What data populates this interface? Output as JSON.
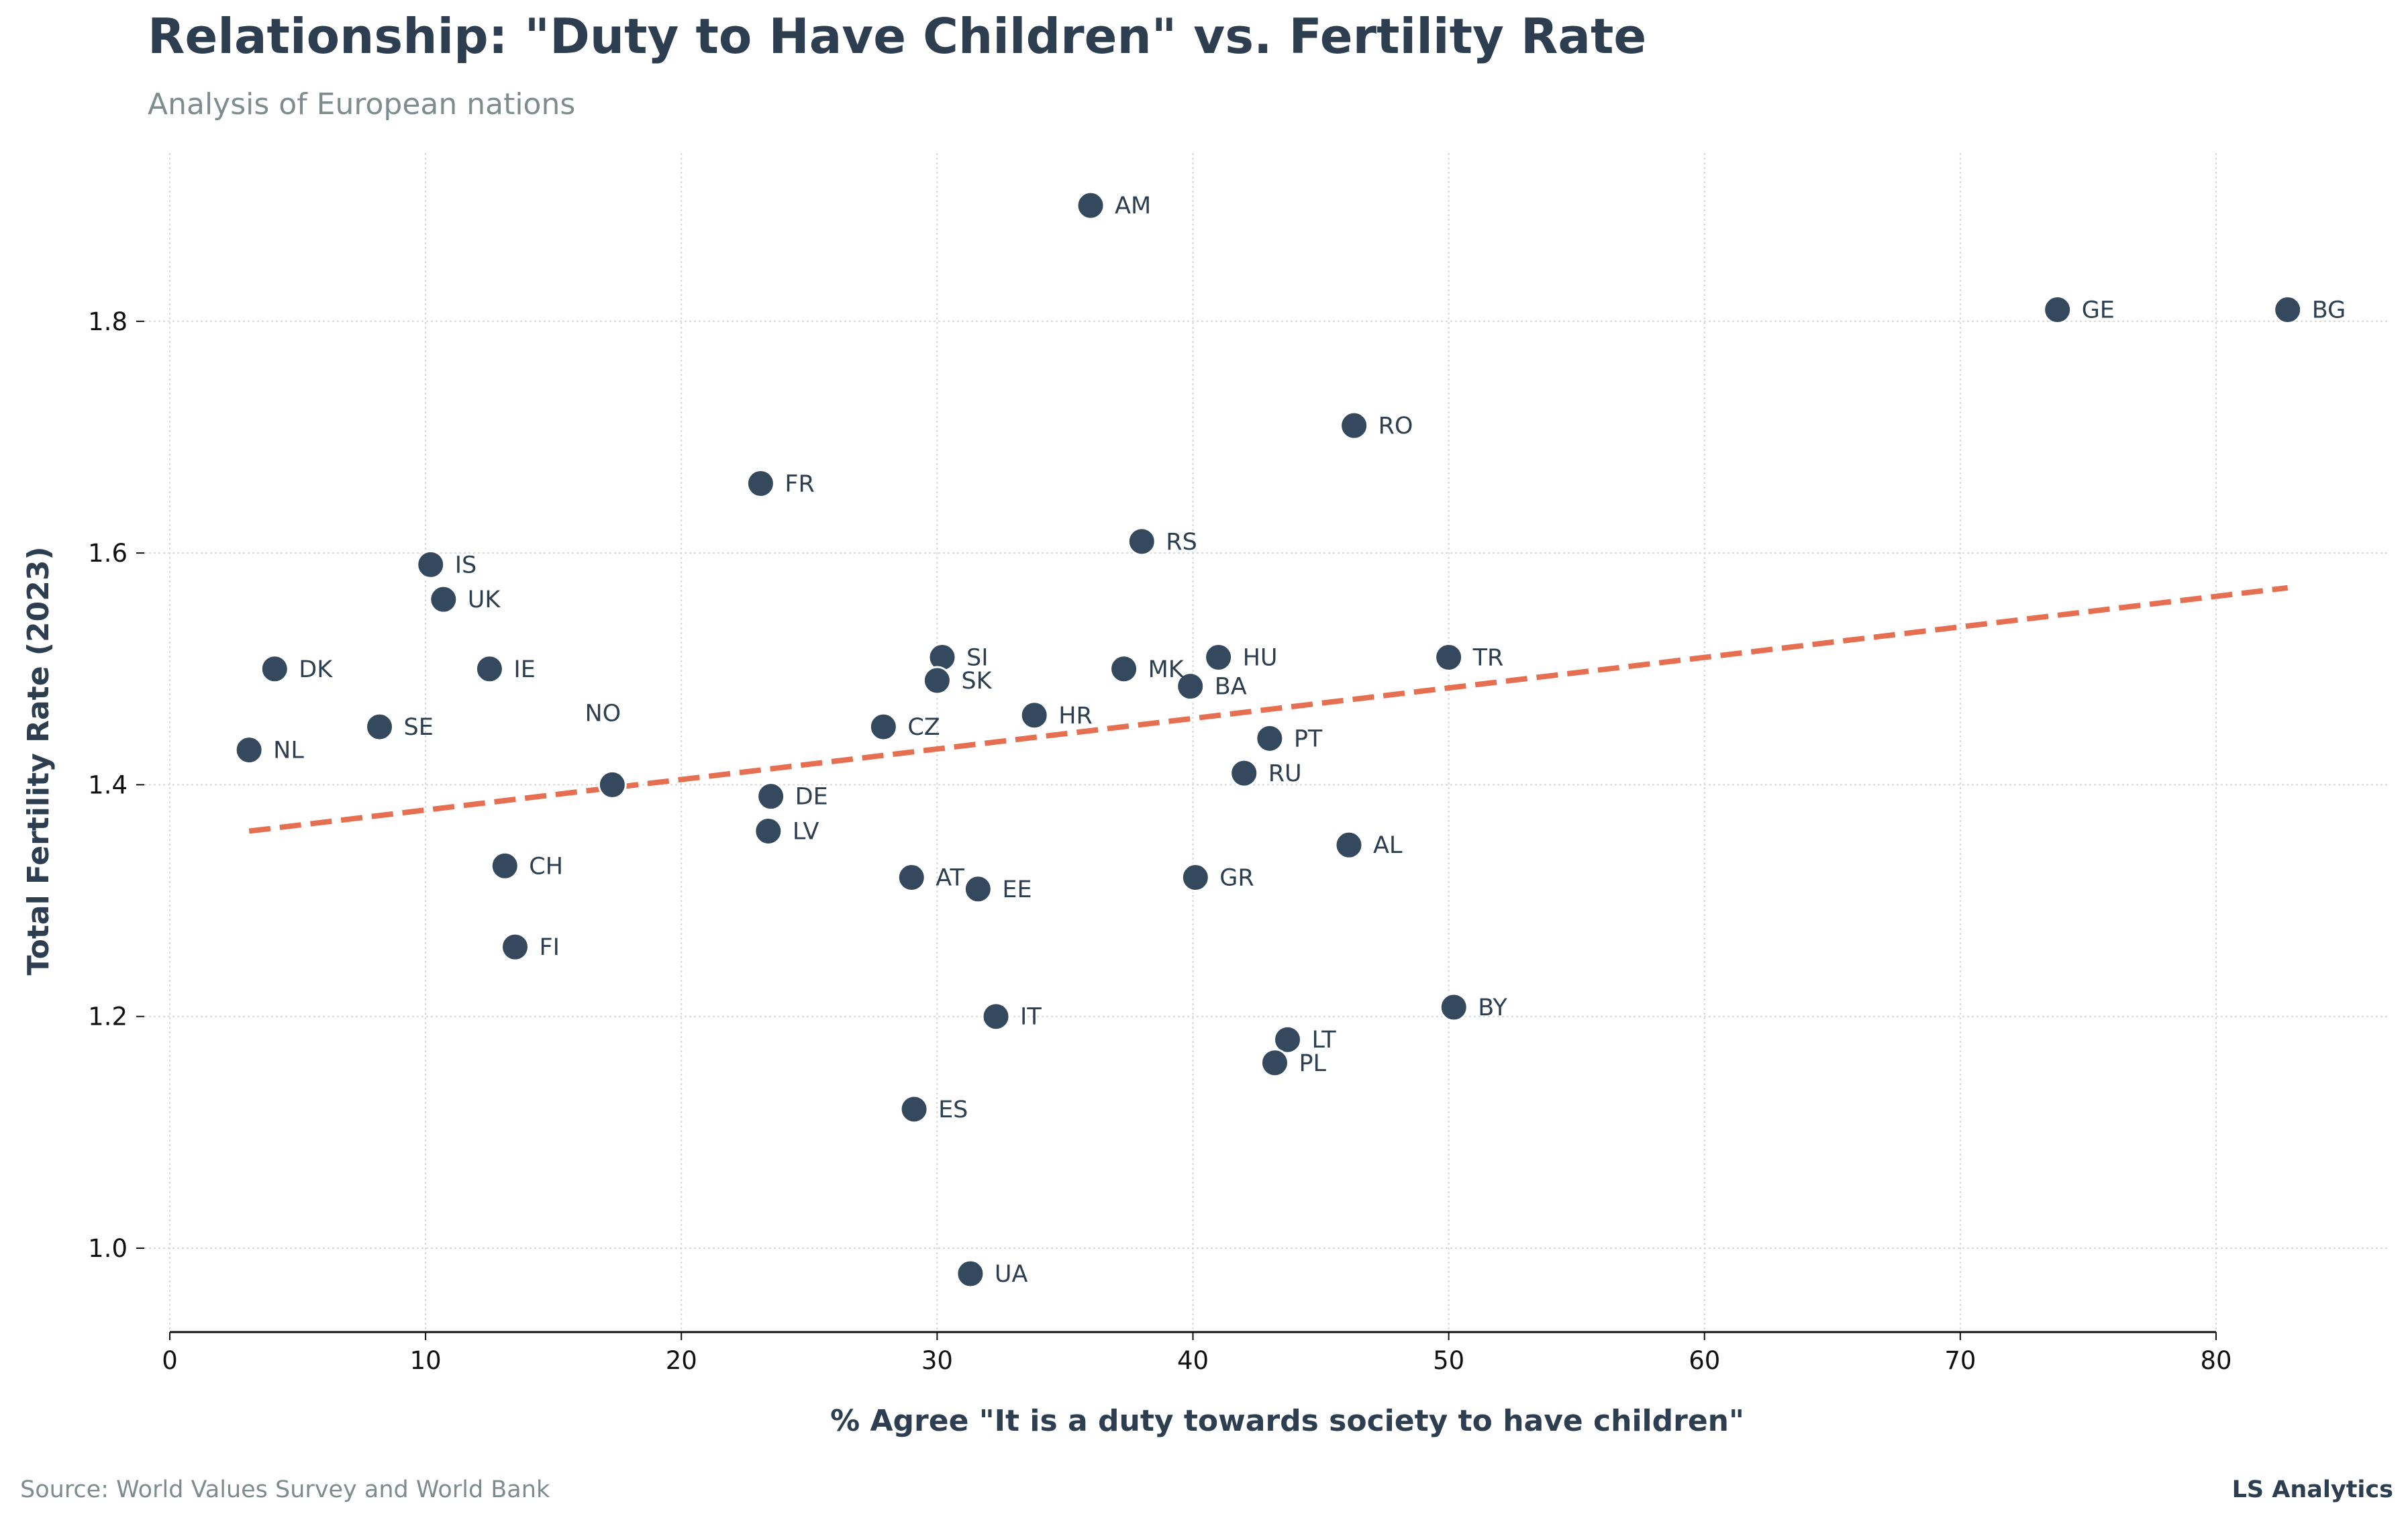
{
  "title": "Relationship: \"Duty to Have Children\" vs. Fertility Rate",
  "subtitle": "Analysis of European nations",
  "footer": {
    "source": "Source: World Values Survey and World Bank",
    "brand": "LS Analytics"
  },
  "colors": {
    "point": "#34495e",
    "trend": "#e76f51",
    "text": "#2c3e50",
    "muted": "#7f8c8d"
  },
  "chart_data": {
    "type": "scatter",
    "title": "Relationship: \"Duty to Have Children\" vs. Fertility Rate",
    "subtitle": "Analysis of European nations",
    "xlabel": "% Agree \"It is a duty towards society to have children\"",
    "ylabel": "Total Fertility Rate (2023)",
    "xlim": [
      0,
      82.8
    ],
    "ylim": [
      0.93,
      1.945
    ],
    "xticks": [
      0,
      10,
      20,
      30,
      40,
      50,
      60,
      70,
      80
    ],
    "yticks": [
      1.0,
      1.2,
      1.4,
      1.6,
      1.8
    ],
    "grid": true,
    "points": [
      {
        "label": "AM",
        "x": 36.0,
        "y": 1.9
      },
      {
        "label": "GE",
        "x": 73.8,
        "y": 1.81
      },
      {
        "label": "BG",
        "x": 82.8,
        "y": 1.81
      },
      {
        "label": "RO",
        "x": 46.3,
        "y": 1.71
      },
      {
        "label": "FR",
        "x": 23.1,
        "y": 1.66
      },
      {
        "label": "RS",
        "x": 38.0,
        "y": 1.61
      },
      {
        "label": "IS",
        "x": 10.2,
        "y": 1.59
      },
      {
        "label": "UK",
        "x": 10.7,
        "y": 1.56
      },
      {
        "label": "DK",
        "x": 4.1,
        "y": 1.5
      },
      {
        "label": "IE",
        "x": 12.5,
        "y": 1.5
      },
      {
        "label": "SI",
        "x": 30.2,
        "y": 1.51
      },
      {
        "label": "SK",
        "x": 30.0,
        "y": 1.49
      },
      {
        "label": "MK",
        "x": 37.3,
        "y": 1.5
      },
      {
        "label": "HU",
        "x": 41.0,
        "y": 1.51
      },
      {
        "label": "BA",
        "x": 39.9,
        "y": 1.485
      },
      {
        "label": "TR",
        "x": 50.0,
        "y": 1.51
      },
      {
        "label": "SE",
        "x": 8.2,
        "y": 1.45
      },
      {
        "label": "CZ",
        "x": 27.9,
        "y": 1.45
      },
      {
        "label": "HR",
        "x": 33.8,
        "y": 1.46
      },
      {
        "label": "NL",
        "x": 3.1,
        "y": 1.43
      },
      {
        "label": "PT",
        "x": 43.0,
        "y": 1.44
      },
      {
        "label": "NO",
        "x": 17.3,
        "y": 1.4
      },
      {
        "label": "DE",
        "x": 23.5,
        "y": 1.39
      },
      {
        "label": "RU",
        "x": 42.0,
        "y": 1.41
      },
      {
        "label": "LV",
        "x": 23.4,
        "y": 1.36
      },
      {
        "label": "AL",
        "x": 46.1,
        "y": 1.348
      },
      {
        "label": "CH",
        "x": 13.1,
        "y": 1.33
      },
      {
        "label": "AT",
        "x": 29.0,
        "y": 1.32
      },
      {
        "label": "EE",
        "x": 31.6,
        "y": 1.31
      },
      {
        "label": "GR",
        "x": 40.1,
        "y": 1.32
      },
      {
        "label": "FI",
        "x": 13.5,
        "y": 1.26
      },
      {
        "label": "IT",
        "x": 32.3,
        "y": 1.2
      },
      {
        "label": "BY",
        "x": 50.2,
        "y": 1.208
      },
      {
        "label": "LT",
        "x": 43.7,
        "y": 1.18
      },
      {
        "label": "PL",
        "x": 43.2,
        "y": 1.16
      },
      {
        "label": "ES",
        "x": 29.1,
        "y": 1.12
      },
      {
        "label": "UA",
        "x": 31.3,
        "y": 0.978
      }
    ],
    "trendline": {
      "x": [
        3.1,
        82.8
      ],
      "y": [
        1.36,
        1.57
      ]
    }
  }
}
